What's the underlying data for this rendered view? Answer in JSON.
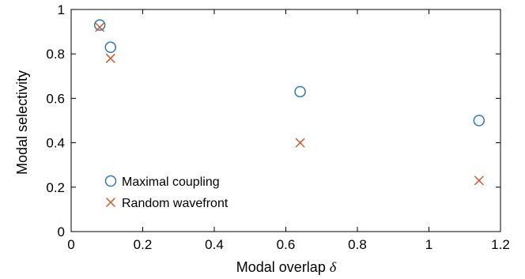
{
  "chart_data": {
    "type": "scatter",
    "xlabel": "Modal overlap",
    "xlabel_symbol": "δ",
    "ylabel": "Modal selectivity",
    "xlim": [
      0,
      1.2
    ],
    "ylim": [
      0,
      1
    ],
    "x_ticks": [
      "0",
      "0.2",
      "0.4",
      "0.6",
      "0.8",
      "1",
      "1.2"
    ],
    "y_ticks": [
      "0",
      "0.2",
      "0.4",
      "0.6",
      "0.8",
      "1"
    ],
    "grid": false,
    "legend_position": "bottom-left",
    "series": [
      {
        "name": "Maximal coupling",
        "marker": "circle",
        "color": "#2e78b4",
        "points": [
          {
            "x": 0.08,
            "y": 0.93
          },
          {
            "x": 0.11,
            "y": 0.83
          },
          {
            "x": 0.64,
            "y": 0.63
          },
          {
            "x": 1.14,
            "y": 0.5
          }
        ]
      },
      {
        "name": "Random wavefront",
        "marker": "x",
        "color": "#d2582c",
        "points": [
          {
            "x": 0.08,
            "y": 0.92
          },
          {
            "x": 0.11,
            "y": 0.78
          },
          {
            "x": 0.64,
            "y": 0.4
          },
          {
            "x": 1.14,
            "y": 0.23
          }
        ]
      }
    ]
  }
}
